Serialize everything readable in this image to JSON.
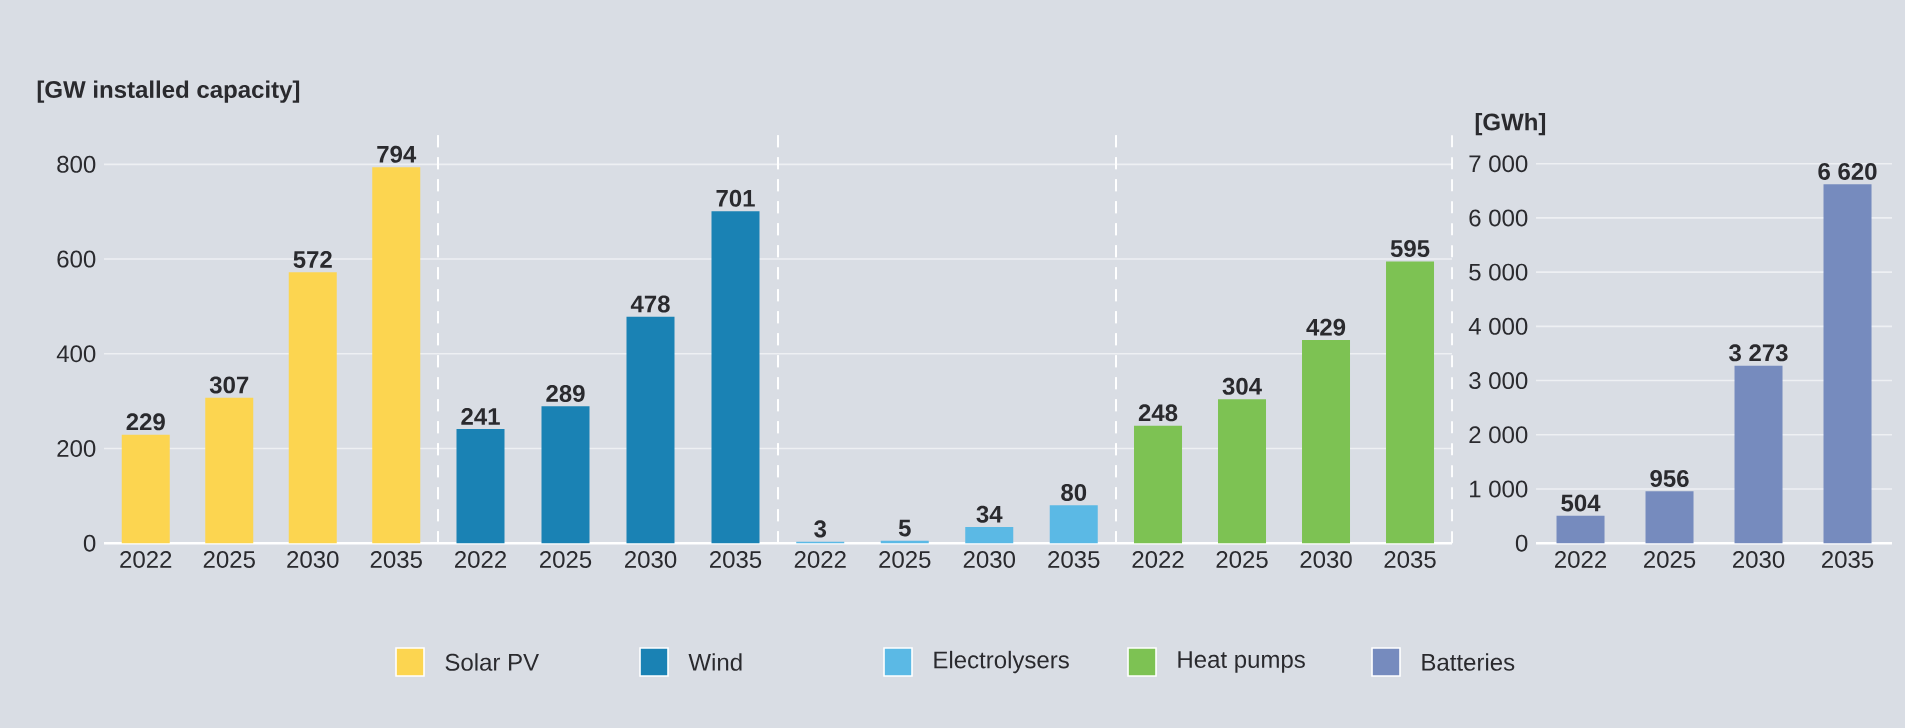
{
  "chart_data": [
    {
      "type": "bar",
      "ylabel": "[GW installed capacity]",
      "categories": [
        "2022",
        "2025",
        "2030",
        "2035"
      ],
      "series": [
        {
          "name": "Solar PV",
          "color": "#fcd550",
          "values": [
            229,
            307,
            572,
            794
          ]
        }
      ],
      "ylim": [
        0,
        870
      ],
      "yticks": [
        0,
        200,
        400,
        600,
        800
      ],
      "grid": "y",
      "legend": "bottom",
      "data_labels": true
    },
    {
      "type": "bar",
      "categories": [
        "2022",
        "2025",
        "2030",
        "2035"
      ],
      "series": [
        {
          "name": "Wind",
          "color": "#1a82b4",
          "values": [
            241,
            289,
            478,
            701
          ]
        }
      ],
      "ylim": [
        0,
        870
      ],
      "yticks": [
        0,
        200,
        400,
        600,
        800
      ],
      "grid": "y",
      "legend": "bottom",
      "data_labels": true,
      "tick_labels": "x"
    },
    {
      "type": "bar",
      "categories": [
        "2022",
        "2025",
        "2030",
        "2035"
      ],
      "series": [
        {
          "name": "Electrolysers",
          "color": "#5bb9e5",
          "values": [
            3,
            5,
            34,
            80
          ]
        }
      ],
      "ylim": [
        0,
        870
      ],
      "yticks": [
        0,
        200,
        400,
        600,
        800
      ],
      "grid": "y",
      "legend": "bottom",
      "data_labels": true,
      "tick_labels": "x"
    },
    {
      "type": "bar",
      "categories": [
        "2022",
        "2025",
        "2030",
        "2035"
      ],
      "series": [
        {
          "name": "Heat pumps",
          "color": "#7dc253",
          "values": [
            248,
            304,
            429,
            595
          ]
        }
      ],
      "ylim": [
        0,
        870
      ],
      "yticks": [
        0,
        200,
        400,
        600,
        800
      ],
      "grid": "y",
      "legend": "bottom",
      "data_labels": true,
      "tick_labels": "x"
    },
    {
      "type": "bar",
      "ylabel": "[GWh]",
      "categories": [
        "2022",
        "2025",
        "2030",
        "2035"
      ],
      "series": [
        {
          "name": "Batteries",
          "color": "#768bbe",
          "values": [
            504,
            956,
            3273,
            6620
          ],
          "value_labels": [
            "504",
            "956",
            "3 273",
            "6 620"
          ]
        }
      ],
      "ylim": [
        0,
        7000
      ],
      "yticks": [
        0,
        {
          "value": 1000,
          "label": "1 000"
        },
        {
          "value": 2000,
          "label": "2 000"
        },
        {
          "value": 3000,
          "label": "3 000"
        },
        {
          "value": 4000,
          "label": "4 000"
        },
        {
          "value": 5000,
          "label": "5 000"
        },
        {
          "value": 6000,
          "label": "6 000"
        },
        {
          "value": 7000,
          "label": "7 000"
        }
      ],
      "grid": "y",
      "legend": "bottom"
    }
  ]
}
